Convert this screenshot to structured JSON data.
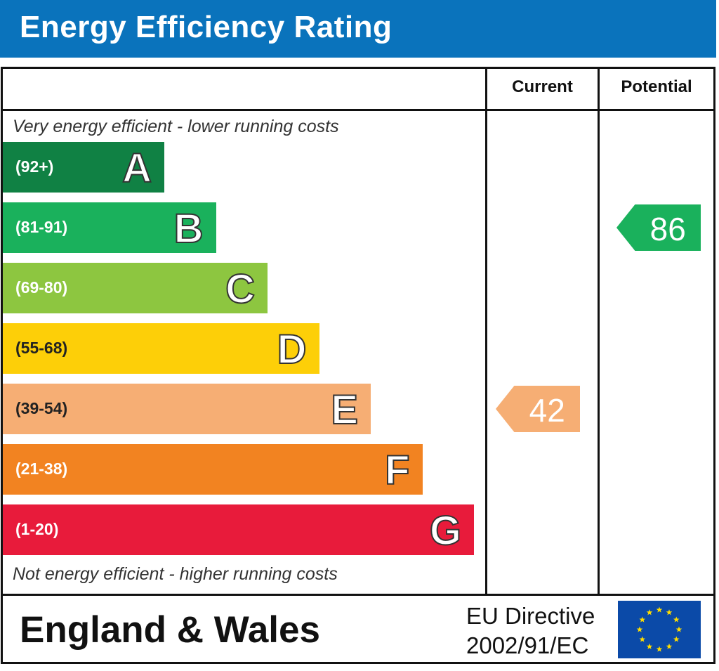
{
  "header": {
    "title": "Energy Efficiency Rating"
  },
  "columns": {
    "current": "Current",
    "potential": "Potential"
  },
  "notes": {
    "top": "Very energy efficient - lower running costs",
    "bottom": "Not energy efficient - higher running costs"
  },
  "chart_data": {
    "type": "bar",
    "title": "Energy Efficiency Rating",
    "categories": [
      "A",
      "B",
      "C",
      "D",
      "E",
      "F",
      "G"
    ],
    "bands": [
      {
        "letter": "A",
        "range": "(92+)",
        "color": "#108144"
      },
      {
        "letter": "B",
        "range": "(81-91)",
        "color": "#1ab15c"
      },
      {
        "letter": "C",
        "range": "(69-80)",
        "color": "#8dc640"
      },
      {
        "letter": "D",
        "range": "(55-68)",
        "color": "#fdcf08"
      },
      {
        "letter": "E",
        "range": "(39-54)",
        "color": "#f6ae74"
      },
      {
        "letter": "F",
        "range": "(21-38)",
        "color": "#f28321"
      },
      {
        "letter": "G",
        "range": "(1-20)",
        "color": "#e81b3b"
      }
    ],
    "current": {
      "value": 42,
      "label": "42",
      "band": "E",
      "color": "#f6ae74"
    },
    "potential": {
      "value": 86,
      "label": "86",
      "band": "B",
      "color": "#1ab15c"
    }
  },
  "footer": {
    "country": "England & Wales",
    "directive_line1": "EU Directive",
    "directive_line2": "2002/91/EC",
    "flag_icon": "eu-flag-icon"
  }
}
